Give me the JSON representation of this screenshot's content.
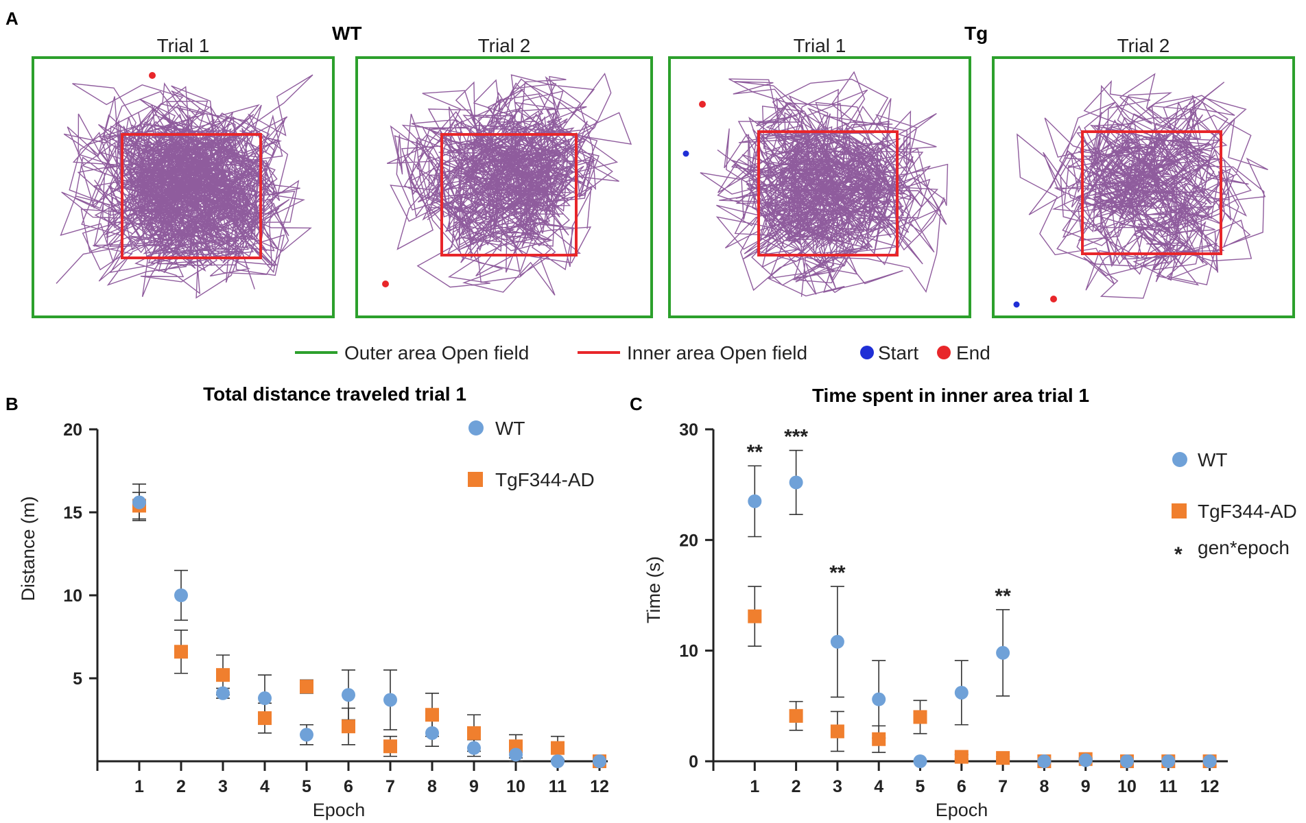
{
  "panel_a": {
    "letter": "A",
    "group_labels": {
      "wt": "WT",
      "tg": "Tg"
    },
    "trials": [
      {
        "title": "Trial 1",
        "group": "WT"
      },
      {
        "title": "Trial 2",
        "group": "WT"
      },
      {
        "title": "Trial 1",
        "group": "Tg"
      },
      {
        "title": "Trial 2",
        "group": "Tg"
      }
    ],
    "legend": {
      "outer": "Outer area Open field",
      "inner": "Inner area Open field",
      "start": "Start",
      "end": "End"
    },
    "colors": {
      "outer": "#2ca02c",
      "inner": "#e8262a",
      "track": "#7b3f8c",
      "start": "#1f2fd6",
      "end": "#e8262a"
    }
  },
  "panel_b": {
    "letter": "B"
  },
  "panel_c": {
    "letter": "C"
  },
  "chart_data": [
    {
      "type": "scatter",
      "title": "Total distance traveled trial 1",
      "xlabel": "Epoch",
      "ylabel": "Distance (m)",
      "ylim": [
        0,
        20
      ],
      "yticks": [
        5,
        10,
        15,
        20
      ],
      "categories": [
        "1",
        "2",
        "3",
        "4",
        "5",
        "6",
        "7",
        "8",
        "9",
        "10",
        "11",
        "12"
      ],
      "series": [
        {
          "name": "WT",
          "marker": "circle",
          "color": "#6fa1d8",
          "values": [
            15.6,
            10.0,
            4.1,
            3.8,
            1.6,
            4.0,
            3.7,
            1.7,
            0.8,
            0.4,
            0.0,
            0.0
          ],
          "errors": [
            1.1,
            1.5,
            0.3,
            1.4,
            0.6,
            1.5,
            1.8,
            0.8,
            0.5,
            0.4,
            0.1,
            0.0
          ]
        },
        {
          "name": "TgF344-AD",
          "marker": "square",
          "color": "#f07f2e",
          "values": [
            15.4,
            6.6,
            5.2,
            2.6,
            4.5,
            2.1,
            0.9,
            2.8,
            1.7,
            0.9,
            0.8,
            0.0
          ],
          "errors": [
            0.8,
            1.3,
            1.2,
            0.9,
            0.4,
            1.1,
            0.6,
            1.3,
            1.1,
            0.7,
            0.7,
            0.1
          ]
        }
      ],
      "legend": [
        "WT",
        "TgF344-AD"
      ]
    },
    {
      "type": "scatter",
      "title": "Time spent in inner area trial 1",
      "xlabel": "Epoch",
      "ylabel": "Time (s)",
      "ylim": [
        0,
        30
      ],
      "yticks": [
        0,
        10,
        20,
        30
      ],
      "categories": [
        "1",
        "2",
        "3",
        "4",
        "5",
        "6",
        "7",
        "8",
        "9",
        "10",
        "11",
        "12"
      ],
      "series": [
        {
          "name": "WT",
          "marker": "circle",
          "color": "#6fa1d8",
          "values": [
            23.5,
            25.2,
            10.8,
            5.6,
            0.0,
            6.2,
            9.8,
            0.0,
            0.1,
            0.0,
            0.0,
            0.0
          ],
          "errors": [
            3.2,
            2.9,
            5.0,
            3.5,
            0.0,
            2.9,
            3.9,
            0.0,
            0.1,
            0.0,
            0.0,
            0.0
          ]
        },
        {
          "name": "TgF344-AD",
          "marker": "square",
          "color": "#f07f2e",
          "values": [
            13.1,
            4.1,
            2.7,
            2.0,
            4.0,
            0.4,
            0.3,
            0.0,
            0.2,
            0.0,
            0.0,
            0.0
          ],
          "errors": [
            2.7,
            1.3,
            1.8,
            1.2,
            1.5,
            0.2,
            0.1,
            0.0,
            0.1,
            0.0,
            0.0,
            0.0
          ]
        }
      ],
      "annotations": [
        {
          "epoch": "1",
          "text": "**"
        },
        {
          "epoch": "2",
          "text": "***"
        },
        {
          "epoch": "3",
          "text": "**"
        },
        {
          "epoch": "7",
          "text": "**"
        }
      ],
      "legend": [
        "WT",
        "TgF344-AD"
      ],
      "note": {
        "symbol": "*",
        "text": "gen*epoch"
      }
    }
  ]
}
